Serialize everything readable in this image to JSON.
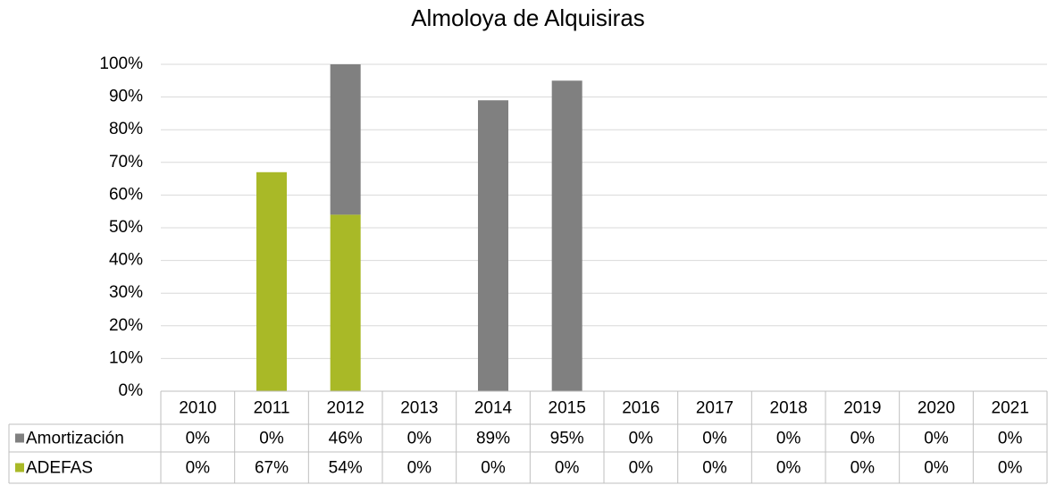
{
  "chart_data": {
    "type": "bar",
    "stacked": true,
    "title": "Almoloya de Alquisiras",
    "categories": [
      "2010",
      "2011",
      "2012",
      "2013",
      "2014",
      "2015",
      "2016",
      "2017",
      "2018",
      "2019",
      "2020",
      "2021"
    ],
    "series": [
      {
        "name": "Amortización",
        "color": "#808080",
        "values": [
          0,
          0,
          46,
          0,
          89,
          95,
          0,
          0,
          0,
          0,
          0,
          0
        ],
        "value_labels": [
          "0%",
          "0%",
          "46%",
          "0%",
          "89%",
          "95%",
          "0%",
          "0%",
          "0%",
          "0%",
          "0%",
          "0%"
        ]
      },
      {
        "name": "ADEFAS",
        "color": "#a9b927",
        "values": [
          0,
          67,
          54,
          0,
          0,
          0,
          0,
          0,
          0,
          0,
          0,
          0
        ],
        "value_labels": [
          "0%",
          "67%",
          "54%",
          "0%",
          "0%",
          "0%",
          "0%",
          "0%",
          "0%",
          "0%",
          "0%",
          "0%"
        ]
      }
    ],
    "ylim": [
      0,
      100
    ],
    "yticks": [
      {
        "value": 0,
        "label": "0%"
      },
      {
        "value": 10,
        "label": "10%"
      },
      {
        "value": 20,
        "label": "20%"
      },
      {
        "value": 30,
        "label": "30%"
      },
      {
        "value": 40,
        "label": "40%"
      },
      {
        "value": 50,
        "label": "50%"
      },
      {
        "value": 60,
        "label": "60%"
      },
      {
        "value": 70,
        "label": "70%"
      },
      {
        "value": 80,
        "label": "80%"
      },
      {
        "value": 90,
        "label": "90%"
      },
      {
        "value": 100,
        "label": "100%"
      }
    ],
    "grid": true
  }
}
